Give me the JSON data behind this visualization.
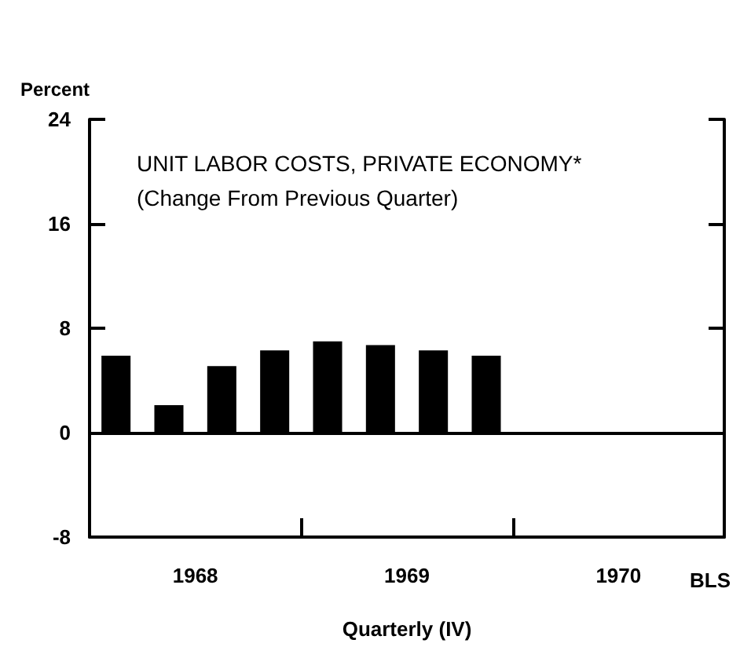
{
  "chart_data": {
    "type": "bar",
    "title": "UNIT LABOR COSTS, PRIVATE ECONOMY*",
    "subtitle": "(Change From Previous Quarter)",
    "ylabel": "Percent",
    "xlabel": "Quarterly (IV)",
    "annotations": [
      "BLS"
    ],
    "categories": [
      null,
      "1968",
      null,
      null,
      null,
      "1969",
      null,
      null,
      null,
      "1970",
      null,
      null
    ],
    "values": [
      5.9,
      2.1,
      5.1,
      6.3,
      7.0,
      6.7,
      6.3,
      5.9,
      null,
      null,
      null,
      null
    ],
    "color": "#000000",
    "ylim": [
      -8,
      24
    ],
    "yticks": [
      -8,
      0,
      8,
      16,
      24
    ]
  }
}
